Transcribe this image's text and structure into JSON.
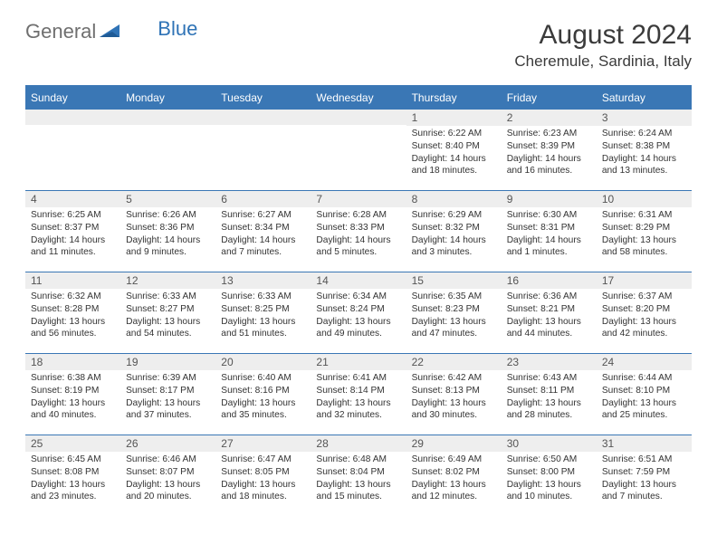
{
  "colors": {
    "header_blue": "#3a77b5",
    "logo_gray": "#6f6f6f",
    "logo_blue": "#2f73b6",
    "daynum_bg": "#eeeeee",
    "text": "#333333",
    "white": "#ffffff"
  },
  "logo": {
    "general": "General",
    "blue": "Blue"
  },
  "title": "August 2024",
  "location": "Cheremule, Sardinia, Italy",
  "day_headers": [
    "Sunday",
    "Monday",
    "Tuesday",
    "Wednesday",
    "Thursday",
    "Friday",
    "Saturday"
  ],
  "weeks": [
    [
      {
        "empty": true
      },
      {
        "empty": true
      },
      {
        "empty": true
      },
      {
        "empty": true
      },
      {
        "num": "1",
        "sunrise": "Sunrise: 6:22 AM",
        "sunset": "Sunset: 8:40 PM",
        "daylight": "Daylight: 14 hours and 18 minutes."
      },
      {
        "num": "2",
        "sunrise": "Sunrise: 6:23 AM",
        "sunset": "Sunset: 8:39 PM",
        "daylight": "Daylight: 14 hours and 16 minutes."
      },
      {
        "num": "3",
        "sunrise": "Sunrise: 6:24 AM",
        "sunset": "Sunset: 8:38 PM",
        "daylight": "Daylight: 14 hours and 13 minutes."
      }
    ],
    [
      {
        "num": "4",
        "sunrise": "Sunrise: 6:25 AM",
        "sunset": "Sunset: 8:37 PM",
        "daylight": "Daylight: 14 hours and 11 minutes."
      },
      {
        "num": "5",
        "sunrise": "Sunrise: 6:26 AM",
        "sunset": "Sunset: 8:36 PM",
        "daylight": "Daylight: 14 hours and 9 minutes."
      },
      {
        "num": "6",
        "sunrise": "Sunrise: 6:27 AM",
        "sunset": "Sunset: 8:34 PM",
        "daylight": "Daylight: 14 hours and 7 minutes."
      },
      {
        "num": "7",
        "sunrise": "Sunrise: 6:28 AM",
        "sunset": "Sunset: 8:33 PM",
        "daylight": "Daylight: 14 hours and 5 minutes."
      },
      {
        "num": "8",
        "sunrise": "Sunrise: 6:29 AM",
        "sunset": "Sunset: 8:32 PM",
        "daylight": "Daylight: 14 hours and 3 minutes."
      },
      {
        "num": "9",
        "sunrise": "Sunrise: 6:30 AM",
        "sunset": "Sunset: 8:31 PM",
        "daylight": "Daylight: 14 hours and 1 minutes."
      },
      {
        "num": "10",
        "sunrise": "Sunrise: 6:31 AM",
        "sunset": "Sunset: 8:29 PM",
        "daylight": "Daylight: 13 hours and 58 minutes."
      }
    ],
    [
      {
        "num": "11",
        "sunrise": "Sunrise: 6:32 AM",
        "sunset": "Sunset: 8:28 PM",
        "daylight": "Daylight: 13 hours and 56 minutes."
      },
      {
        "num": "12",
        "sunrise": "Sunrise: 6:33 AM",
        "sunset": "Sunset: 8:27 PM",
        "daylight": "Daylight: 13 hours and 54 minutes."
      },
      {
        "num": "13",
        "sunrise": "Sunrise: 6:33 AM",
        "sunset": "Sunset: 8:25 PM",
        "daylight": "Daylight: 13 hours and 51 minutes."
      },
      {
        "num": "14",
        "sunrise": "Sunrise: 6:34 AM",
        "sunset": "Sunset: 8:24 PM",
        "daylight": "Daylight: 13 hours and 49 minutes."
      },
      {
        "num": "15",
        "sunrise": "Sunrise: 6:35 AM",
        "sunset": "Sunset: 8:23 PM",
        "daylight": "Daylight: 13 hours and 47 minutes."
      },
      {
        "num": "16",
        "sunrise": "Sunrise: 6:36 AM",
        "sunset": "Sunset: 8:21 PM",
        "daylight": "Daylight: 13 hours and 44 minutes."
      },
      {
        "num": "17",
        "sunrise": "Sunrise: 6:37 AM",
        "sunset": "Sunset: 8:20 PM",
        "daylight": "Daylight: 13 hours and 42 minutes."
      }
    ],
    [
      {
        "num": "18",
        "sunrise": "Sunrise: 6:38 AM",
        "sunset": "Sunset: 8:19 PM",
        "daylight": "Daylight: 13 hours and 40 minutes."
      },
      {
        "num": "19",
        "sunrise": "Sunrise: 6:39 AM",
        "sunset": "Sunset: 8:17 PM",
        "daylight": "Daylight: 13 hours and 37 minutes."
      },
      {
        "num": "20",
        "sunrise": "Sunrise: 6:40 AM",
        "sunset": "Sunset: 8:16 PM",
        "daylight": "Daylight: 13 hours and 35 minutes."
      },
      {
        "num": "21",
        "sunrise": "Sunrise: 6:41 AM",
        "sunset": "Sunset: 8:14 PM",
        "daylight": "Daylight: 13 hours and 32 minutes."
      },
      {
        "num": "22",
        "sunrise": "Sunrise: 6:42 AM",
        "sunset": "Sunset: 8:13 PM",
        "daylight": "Daylight: 13 hours and 30 minutes."
      },
      {
        "num": "23",
        "sunrise": "Sunrise: 6:43 AM",
        "sunset": "Sunset: 8:11 PM",
        "daylight": "Daylight: 13 hours and 28 minutes."
      },
      {
        "num": "24",
        "sunrise": "Sunrise: 6:44 AM",
        "sunset": "Sunset: 8:10 PM",
        "daylight": "Daylight: 13 hours and 25 minutes."
      }
    ],
    [
      {
        "num": "25",
        "sunrise": "Sunrise: 6:45 AM",
        "sunset": "Sunset: 8:08 PM",
        "daylight": "Daylight: 13 hours and 23 minutes."
      },
      {
        "num": "26",
        "sunrise": "Sunrise: 6:46 AM",
        "sunset": "Sunset: 8:07 PM",
        "daylight": "Daylight: 13 hours and 20 minutes."
      },
      {
        "num": "27",
        "sunrise": "Sunrise: 6:47 AM",
        "sunset": "Sunset: 8:05 PM",
        "daylight": "Daylight: 13 hours and 18 minutes."
      },
      {
        "num": "28",
        "sunrise": "Sunrise: 6:48 AM",
        "sunset": "Sunset: 8:04 PM",
        "daylight": "Daylight: 13 hours and 15 minutes."
      },
      {
        "num": "29",
        "sunrise": "Sunrise: 6:49 AM",
        "sunset": "Sunset: 8:02 PM",
        "daylight": "Daylight: 13 hours and 12 minutes."
      },
      {
        "num": "30",
        "sunrise": "Sunrise: 6:50 AM",
        "sunset": "Sunset: 8:00 PM",
        "daylight": "Daylight: 13 hours and 10 minutes."
      },
      {
        "num": "31",
        "sunrise": "Sunrise: 6:51 AM",
        "sunset": "Sunset: 7:59 PM",
        "daylight": "Daylight: 13 hours and 7 minutes."
      }
    ]
  ]
}
